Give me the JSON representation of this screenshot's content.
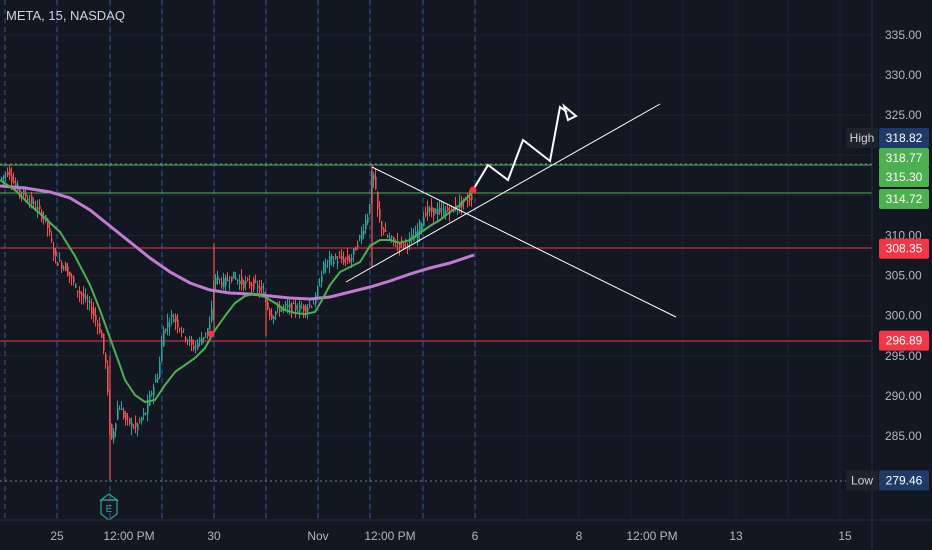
{
  "header": {
    "symbol_label": "META, 15, NASDAQ"
  },
  "chart_data": {
    "type": "candlestick",
    "symbol": "META",
    "interval": "15",
    "exchange": "NASDAQ",
    "ylim": [
      276,
      338
    ],
    "y_ticks": [
      "335.00",
      "330.00",
      "325.00",
      "320.00",
      "315.00",
      "310.00",
      "305.00",
      "300.00",
      "295.00",
      "290.00",
      "285.00"
    ],
    "x_tick_labels": [
      "25",
      "12:00 PM",
      "30",
      "Nov",
      "12:00 PM",
      "6",
      "8",
      "12:00 PM",
      "13",
      "15"
    ],
    "price_tags": [
      {
        "label": "High",
        "value": "318.82"
      },
      {
        "label": "",
        "value": "318.77"
      },
      {
        "label": "",
        "value": "315.30"
      },
      {
        "label": "",
        "value": "314.72"
      },
      {
        "label": "",
        "value": "308.35"
      },
      {
        "label": "",
        "value": "296.89"
      },
      {
        "label": "Low",
        "value": "279.46"
      }
    ],
    "horizontal_levels": [
      {
        "value": 318.77,
        "color": "#4caf50"
      },
      {
        "value": 314.72,
        "color": "#4caf50"
      },
      {
        "value": 308.35,
        "color": "#f23645"
      },
      {
        "value": 296.89,
        "color": "#f23645"
      }
    ],
    "colors": {
      "up": "#26a69a",
      "down": "#ef5350",
      "ema_fast": "#4caf50",
      "ema_slow": "#c27bd1",
      "background": "#131722"
    },
    "event_marker": "E"
  }
}
